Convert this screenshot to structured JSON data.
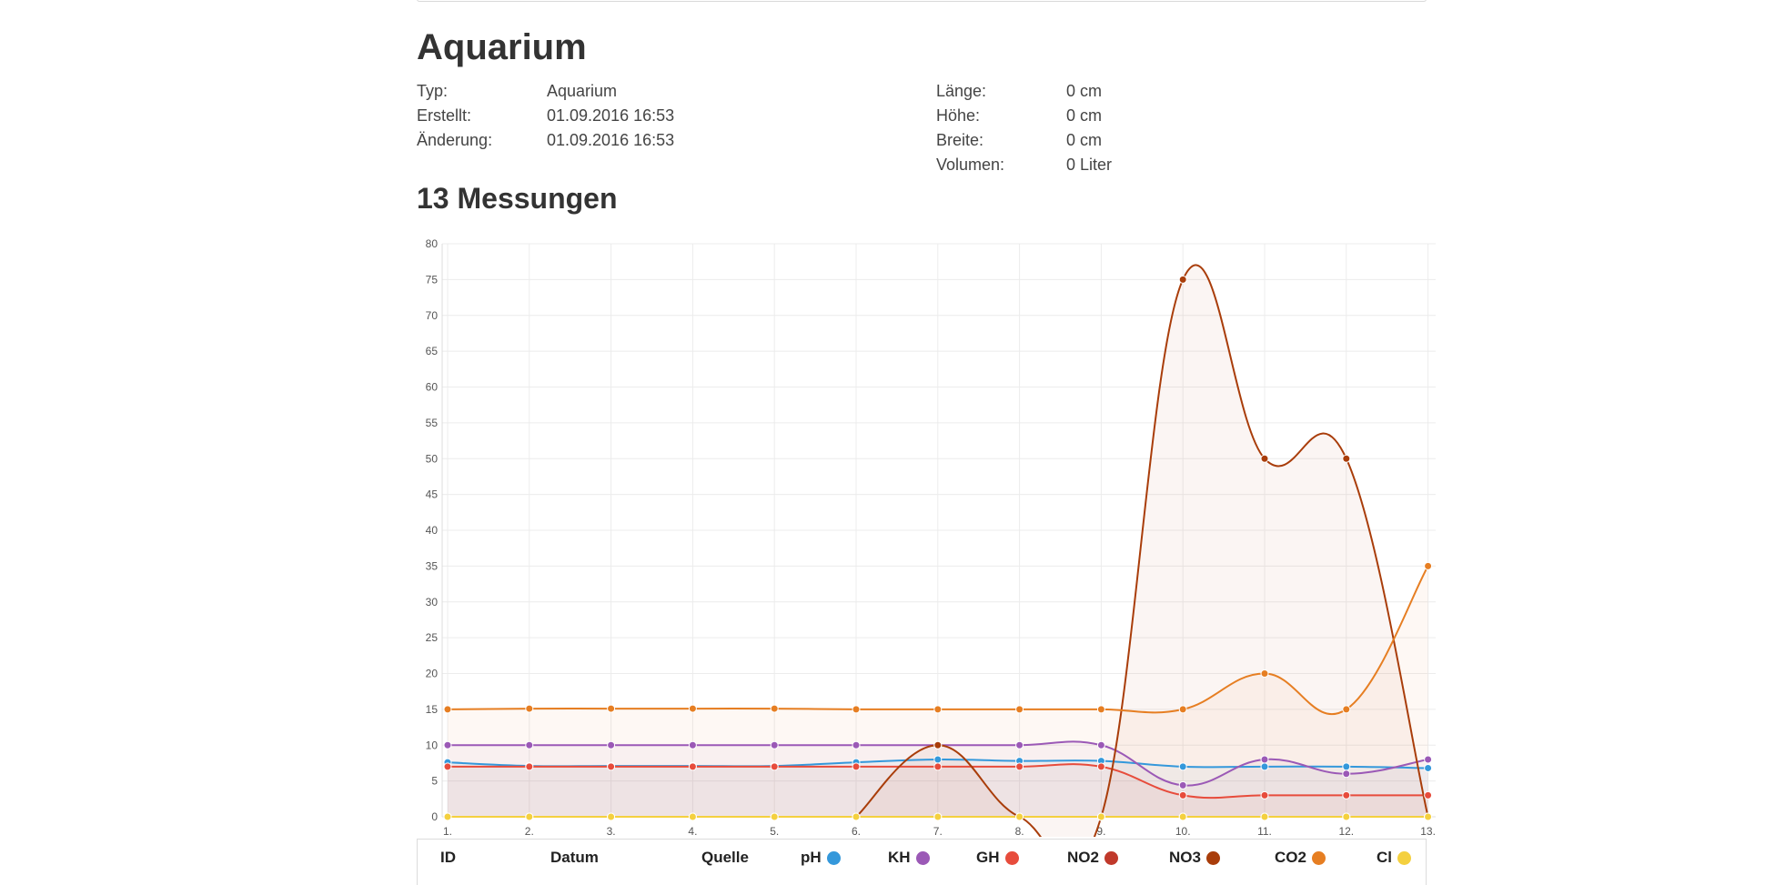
{
  "title": "Aquarium",
  "info_left": [
    {
      "label": "Typ:",
      "value": "Aquarium"
    },
    {
      "label": "Erstellt:",
      "value": "01.09.2016 16:53"
    },
    {
      "label": "Änderung:",
      "value": "01.09.2016 16:53"
    }
  ],
  "info_right": [
    {
      "label": "Länge:",
      "value": "0 cm"
    },
    {
      "label": "Höhe:",
      "value": "0 cm"
    },
    {
      "label": "Breite:",
      "value": "0 cm"
    },
    {
      "label": "Volumen:",
      "value": "0 Liter"
    }
  ],
  "measurements_title": "13 Messungen",
  "chart_data": {
    "type": "line",
    "categories": [
      "1.",
      "2.",
      "3.",
      "4.",
      "5.",
      "6.",
      "7.",
      "8.",
      "9.",
      "10.",
      "11.",
      "12.",
      "13."
    ],
    "ylim": [
      0,
      80
    ],
    "yticks": [
      0,
      5,
      10,
      15,
      20,
      25,
      30,
      35,
      40,
      45,
      50,
      55,
      60,
      65,
      70,
      75,
      80
    ],
    "grid": true,
    "series": [
      {
        "name": "pH",
        "color": "#3498db",
        "values": [
          7.6,
          7.1,
          7.1,
          7.1,
          7.1,
          7.6,
          8,
          7.8,
          7.8,
          7,
          7,
          7,
          6.8
        ]
      },
      {
        "name": "KH",
        "color": "#9b59b6",
        "values": [
          10,
          10,
          10,
          10,
          10,
          10,
          10,
          10,
          10,
          4.4,
          8,
          6,
          8
        ]
      },
      {
        "name": "GH",
        "color": "#e74c3c",
        "values": [
          7,
          7,
          7,
          7,
          7,
          7,
          7,
          7,
          7,
          3,
          3,
          3,
          3
        ]
      },
      {
        "name": "NO2",
        "color": "#c0392b",
        "values": [
          0,
          0,
          0,
          0,
          0,
          0,
          0,
          0,
          0,
          0,
          0,
          0,
          0
        ]
      },
      {
        "name": "NO3",
        "color": "#a93d0a",
        "values": [
          null,
          null,
          null,
          null,
          null,
          0,
          10,
          0,
          0,
          75,
          50,
          50,
          0
        ]
      },
      {
        "name": "CO2",
        "color": "#e67e22",
        "values": [
          15,
          15.1,
          15.1,
          15.1,
          15.1,
          15,
          15,
          15,
          15,
          15,
          20,
          15,
          35
        ]
      },
      {
        "name": "Cl",
        "color": "#f4d03f",
        "values": [
          0,
          0,
          0,
          0,
          0,
          0,
          0,
          0,
          0,
          0,
          0,
          0,
          0
        ]
      }
    ]
  },
  "table": {
    "headers": [
      {
        "label": "ID"
      },
      {
        "label": "Datum"
      },
      {
        "label": "Quelle"
      },
      {
        "label": "pH",
        "color": "#3498db"
      },
      {
        "label": "KH",
        "color": "#9b59b6"
      },
      {
        "label": "GH",
        "color": "#e74c3c"
      },
      {
        "label": "NO2",
        "color": "#c0392b"
      },
      {
        "label": "NO3",
        "color": "#a93d0a"
      },
      {
        "label": "CO2",
        "color": "#e67e22"
      },
      {
        "label": "Cl",
        "color": "#f4d03f"
      }
    ]
  }
}
